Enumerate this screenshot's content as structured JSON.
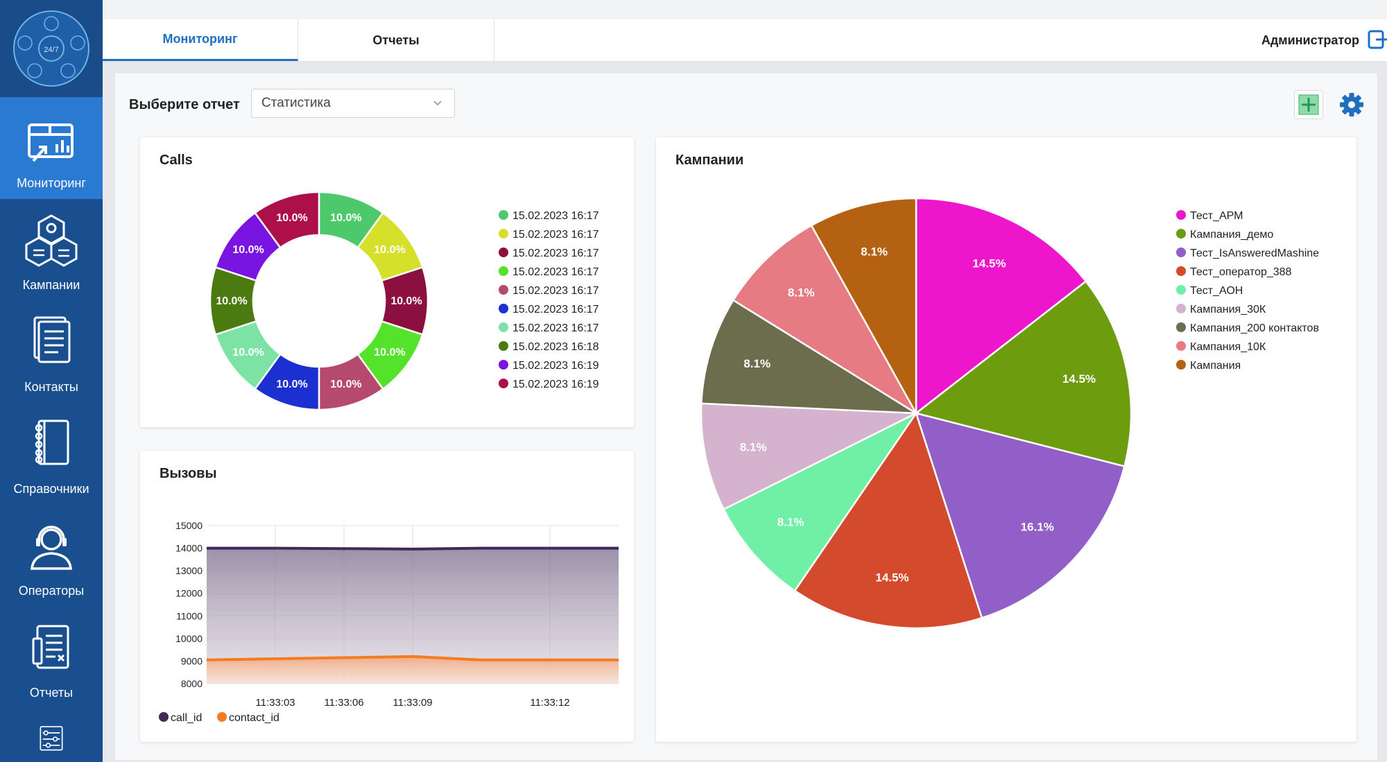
{
  "sidebar": {
    "logo_text": "24/7",
    "items": [
      {
        "label": "Мониторинг",
        "icon": "monitoring-icon",
        "active": true
      },
      {
        "label": "Кампании",
        "icon": "campaigns-icon"
      },
      {
        "label": "Контакты",
        "icon": "contacts-icon"
      },
      {
        "label": "Справочники",
        "icon": "directory-icon"
      },
      {
        "label": "Операторы",
        "icon": "operators-icon"
      },
      {
        "label": "Отчеты",
        "icon": "reports-icon"
      },
      {
        "label": "",
        "icon": "settings-sliders-icon"
      }
    ]
  },
  "topbar": {
    "tabs": [
      {
        "label": "Мониторинг",
        "active": true
      },
      {
        "label": "Отчеты",
        "active": false
      }
    ],
    "user": "Администратор"
  },
  "toolbar": {
    "select_label": "Выберите отчет",
    "select_value": "Статистика"
  },
  "calls": {
    "title": "Calls",
    "chart_data": {
      "type": "pie",
      "donut": true,
      "title": "Calls",
      "labels": [
        "15.02.2023 16:17",
        "15.02.2023 16:17",
        "15.02.2023 16:17",
        "15.02.2023 16:17",
        "15.02.2023 16:17",
        "15.02.2023 16:17",
        "15.02.2023 16:17",
        "15.02.2023 16:18",
        "15.02.2023 16:19",
        "15.02.2023 16:19"
      ],
      "values": [
        10,
        10,
        10,
        10,
        10,
        10,
        10,
        10,
        10,
        10
      ],
      "display": [
        "10.0%",
        "10.0%",
        "10.0%",
        "10.0%",
        "10.0%",
        "10.0%",
        "10.0%",
        "10.0%",
        "10.0%",
        "10.0%"
      ],
      "colors": [
        "#4dc96b",
        "#d4e02a",
        "#8b1040",
        "#55e22a",
        "#b54a6e",
        "#1c2fd1",
        "#7de3a5",
        "#4b7a10",
        "#7a14e0",
        "#ad1048"
      ],
      "legend": "right"
    }
  },
  "vyzovy": {
    "title": "Вызовы",
    "chart_data": {
      "type": "area",
      "title": "Вызовы",
      "x": [
        "11:33:00",
        "11:33:03",
        "11:33:06",
        "11:33:09",
        "11:33:10",
        "11:33:12",
        "11:33:15"
      ],
      "xticks": [
        "11:33:03",
        "11:33:06",
        "11:33:09",
        "11:33:12"
      ],
      "ylim": [
        8000,
        15000
      ],
      "yticks": [
        15000,
        14000,
        13000,
        12000,
        11000,
        10000,
        9000,
        8000
      ],
      "series": [
        {
          "name": "call_id",
          "color": "#3f2a56",
          "values": [
            14000,
            14000,
            13980,
            13960,
            14000,
            14000,
            14000
          ]
        },
        {
          "name": "contact_id",
          "color": "#f47c20",
          "values": [
            9050,
            9100,
            9150,
            9200,
            9050,
            9050,
            9050
          ]
        }
      ],
      "grid": true,
      "legend": "bottom-left"
    }
  },
  "kampanii": {
    "title": "Кампании",
    "chart_data": {
      "type": "pie",
      "title": "Кампании",
      "labels": [
        "Тест_АРМ",
        "Кампания_демо",
        "Тест_IsAnsweredMashine",
        "Тест_оператор_388",
        "Тест_АОН",
        "Кампания_30К",
        "Кампания_200 контактов",
        "Кампания_10К",
        "Кампания"
      ],
      "values": [
        14.5,
        14.5,
        16.1,
        14.5,
        8.1,
        8.1,
        8.1,
        8.1,
        8.1
      ],
      "display": [
        "14.5%",
        "14.5%",
        "16.1%",
        "14.5%",
        "8.1%",
        "8.1%",
        "8.1%",
        "8.1%",
        "8.1%"
      ],
      "colors": [
        "#ee16cd",
        "#6d9c0e",
        "#925ec8",
        "#d44a2c",
        "#6ff0a6",
        "#d5b2cd",
        "#6b6d4c",
        "#e67b84",
        "#b46112"
      ],
      "legend": "right"
    }
  }
}
